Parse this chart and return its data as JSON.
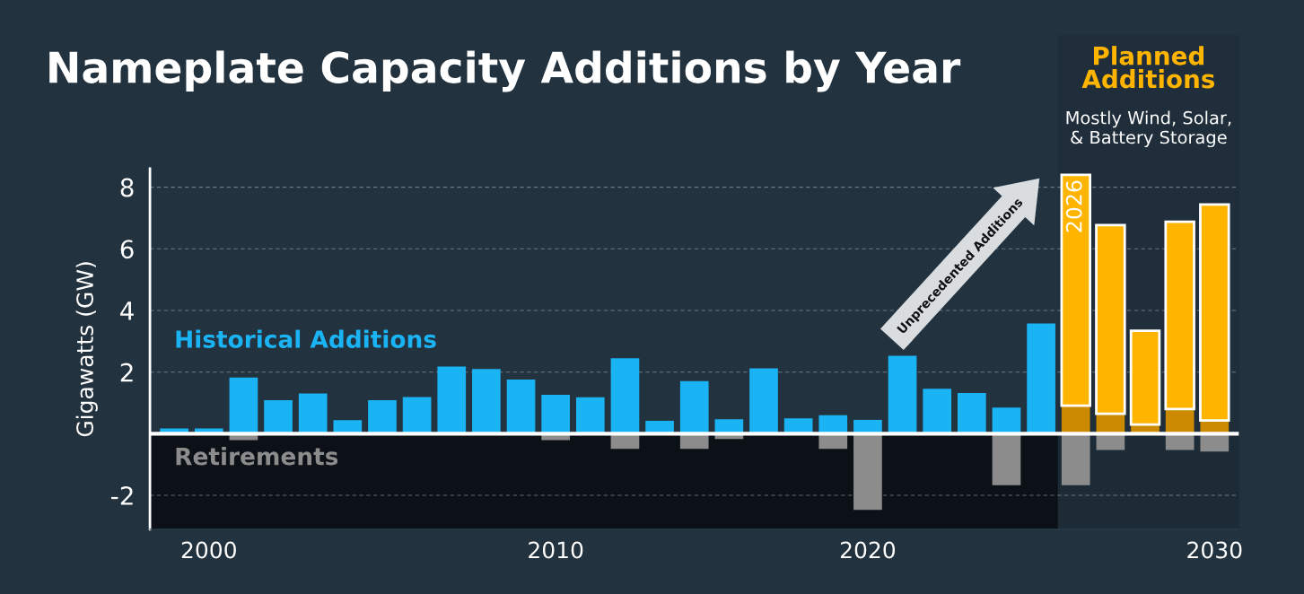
{
  "chart_data": {
    "type": "bar",
    "title": "Nameplate Capacity Additions by Year",
    "ylabel": "Gigawatts (GW)",
    "categories": [
      null,
      "2000",
      null,
      null,
      null,
      null,
      null,
      null,
      null,
      null,
      null,
      "2010",
      null,
      null,
      null,
      null,
      null,
      null,
      null,
      null,
      "2020",
      null,
      null,
      null,
      null,
      null,
      null,
      null,
      null,
      null,
      "2030"
    ],
    "stacked": true,
    "series": [
      {
        "name": "Historical Additions",
        "color": "#1ab4f5",
        "values": [
          0.17,
          0.17,
          1.82,
          1.09,
          1.31,
          0.44,
          1.09,
          1.19,
          2.18,
          2.1,
          1.76,
          1.26,
          1.18,
          2.45,
          0.42,
          1.71,
          0.47,
          2.12,
          0.5,
          0.6,
          0.45,
          2.53,
          1.46,
          1.32,
          0.85,
          3.58,
          null,
          null,
          null,
          null,
          null
        ]
      },
      {
        "color": "#cc8a00",
        "values": [
          null,
          null,
          null,
          null,
          null,
          null,
          null,
          null,
          null,
          null,
          null,
          null,
          null,
          null,
          null,
          null,
          null,
          null,
          null,
          null,
          null,
          null,
          null,
          null,
          null,
          null,
          0.91,
          0.65,
          0.3,
          0.8,
          0.43
        ]
      },
      {
        "name": "Planned Additions",
        "color": "#ffb400",
        "values": [
          null,
          null,
          null,
          null,
          null,
          null,
          null,
          null,
          null,
          null,
          null,
          null,
          null,
          null,
          null,
          null,
          null,
          null,
          null,
          null,
          null,
          null,
          null,
          null,
          null,
          null,
          7.49,
          6.12,
          3.04,
          6.08,
          7.01
        ]
      },
      {
        "name": "Retirements",
        "color": "#8c8c8c",
        "values": [
          null,
          null,
          -0.21,
          null,
          null,
          null,
          null,
          null,
          null,
          null,
          null,
          -0.21,
          null,
          -0.49,
          null,
          -0.49,
          -0.17,
          null,
          null,
          -0.49,
          -2.47,
          null,
          null,
          null,
          -1.67,
          null,
          -1.67,
          -0.53,
          null,
          -0.53,
          -0.58
        ]
      }
    ],
    "annotations": [
      "Unprecedented Additions",
      "Mostly Wind, Solar,\n& Battery Storage",
      "2026"
    ],
    "ylim": [
      -3.1,
      8.6
    ],
    "yticks": [
      -2,
      2,
      4,
      6,
      8
    ],
    "grid": "y"
  }
}
